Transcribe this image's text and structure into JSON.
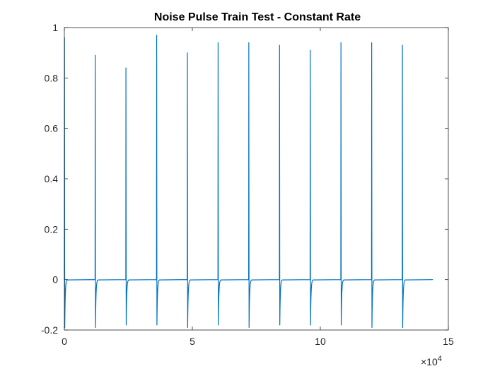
{
  "chart_data": {
    "type": "line",
    "title": "Noise Pulse Train Test - Constant Rate",
    "xlabel": "",
    "ylabel": "",
    "xlim": [
      0,
      150000
    ],
    "ylim": [
      -0.2,
      1
    ],
    "x_ticks": [
      0,
      50000,
      100000,
      150000
    ],
    "x_tick_labels": [
      "0",
      "5",
      "10",
      "15"
    ],
    "x_exponent": "4",
    "x_exponent_prefix": "×10",
    "y_ticks": [
      -0.2,
      0,
      0.2,
      0.4,
      0.6,
      0.8,
      1
    ],
    "y_tick_labels": [
      "-0.2",
      "0",
      "0.2",
      "0.4",
      "0.6",
      "0.8",
      "1"
    ],
    "grid": false,
    "box": true,
    "series_color": "#0072BD",
    "signal_end_x": 144000,
    "decay_samples": 1000,
    "pulses": [
      {
        "x": 0,
        "peak": 0.96,
        "trough": -0.19
      },
      {
        "x": 12000,
        "peak": 0.89,
        "trough": -0.19
      },
      {
        "x": 24000,
        "peak": 0.84,
        "trough": -0.18
      },
      {
        "x": 36000,
        "peak": 0.97,
        "trough": -0.18
      },
      {
        "x": 48000,
        "peak": 0.9,
        "trough": -0.19
      },
      {
        "x": 60000,
        "peak": 0.94,
        "trough": -0.18
      },
      {
        "x": 72000,
        "peak": 0.94,
        "trough": -0.19
      },
      {
        "x": 84000,
        "peak": 0.93,
        "trough": -0.18
      },
      {
        "x": 96000,
        "peak": 0.91,
        "trough": -0.18
      },
      {
        "x": 108000,
        "peak": 0.94,
        "trough": -0.18
      },
      {
        "x": 120000,
        "peak": 0.94,
        "trough": -0.19
      },
      {
        "x": 132000,
        "peak": 0.93,
        "trough": -0.19
      }
    ]
  }
}
